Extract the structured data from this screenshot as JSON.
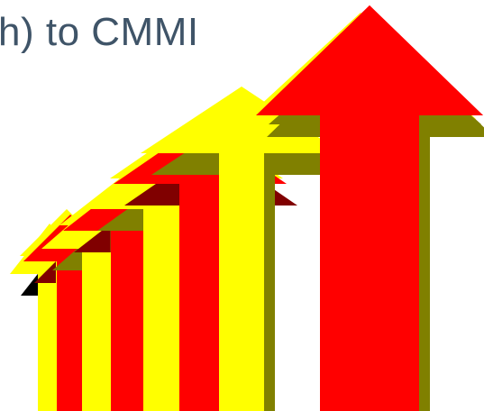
{
  "slide": {
    "title": "h) to CMMI"
  },
  "arrows": {
    "count": 8,
    "icon": "arrow-up-icon",
    "direction": "up",
    "colors": {
      "red": "#ff0000",
      "yellow": "#ffff00",
      "olive": "#808000",
      "maroon": "#800000",
      "black": "#000000"
    }
  },
  "colors": {
    "title_text": "#3f5468",
    "background": "#ffffff"
  }
}
